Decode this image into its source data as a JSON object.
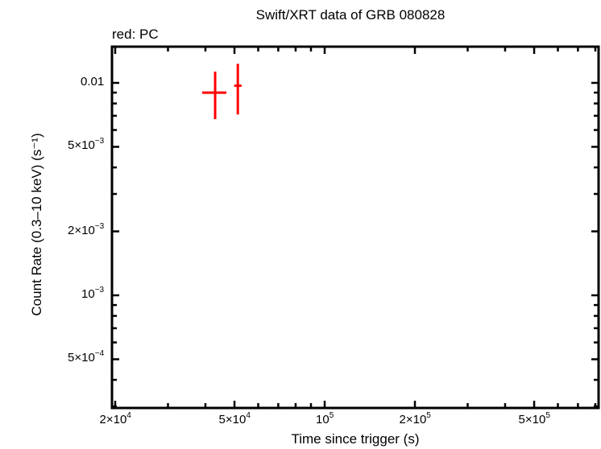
{
  "title": "Swift/XRT data of GRB 080828",
  "subtitle": "red: PC",
  "xlabel": "Time since trigger (s)",
  "ylabel": "Count Rate (0.3–10 keV) (s⁻¹)",
  "x_ticks": [
    {
      "mant": "2×10",
      "exp": "4"
    },
    {
      "mant": "5×10",
      "exp": "4"
    },
    {
      "mant": "10",
      "exp": "5"
    },
    {
      "mant": "2×10",
      "exp": "5"
    },
    {
      "mant": "5×10",
      "exp": "5"
    }
  ],
  "y_ticks": [
    {
      "mant": "0.01",
      "exp": ""
    },
    {
      "mant": "5×10",
      "exp": "−3"
    },
    {
      "mant": "2×10",
      "exp": "−3"
    },
    {
      "mant": "10",
      "exp": "−3"
    },
    {
      "mant": "5×10",
      "exp": "−4"
    }
  ],
  "colors": {
    "pc": "#ff0000",
    "axis": "#000000"
  },
  "chart_data": {
    "type": "scatter",
    "title": "Swift/XRT data of GRB 080828",
    "subtitle": "red: PC",
    "xlabel": "Time since trigger (s)",
    "ylabel": "Count Rate (0.3–10 keV) (s⁻¹)",
    "xscale": "log",
    "yscale": "log",
    "xlim": [
      19000,
      800000
    ],
    "ylim": [
      0.00033,
      0.015
    ],
    "x_tick_labels": [
      "2×10^4",
      "5×10^4",
      "10^5",
      "2×10^5",
      "5×10^5"
    ],
    "y_tick_labels": [
      "0.01",
      "5×10^-3",
      "2×10^-3",
      "10^-3",
      "5×10^-4"
    ],
    "grid": false,
    "series": [
      {
        "name": "PC",
        "color": "#ff0000",
        "points": [
          {
            "x": 43100,
            "x_lo": 39000,
            "x_hi": 47000,
            "y": 0.009,
            "y_lo": 0.00675,
            "y_hi": 0.0113
          },
          {
            "x": 51300,
            "x_lo": 49900,
            "x_hi": 52800,
            "y": 0.0097,
            "y_lo": 0.0071,
            "y_hi": 0.0123
          }
        ]
      }
    ]
  }
}
